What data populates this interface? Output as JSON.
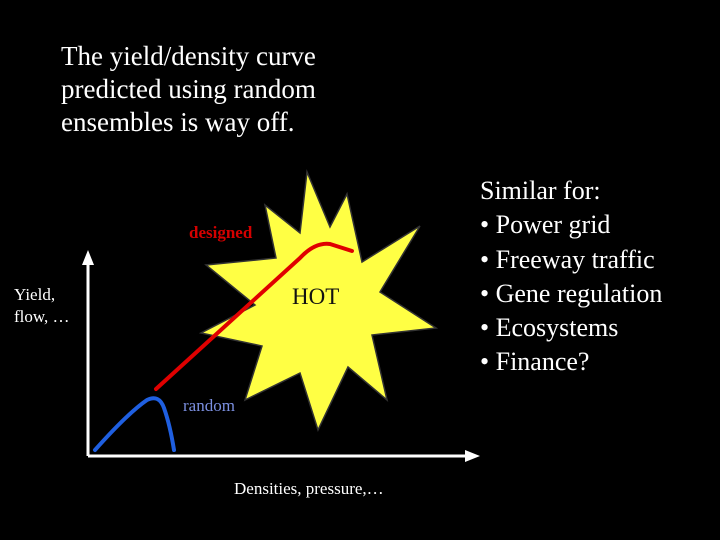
{
  "title_lines": [
    "The yield/density curve",
    "predicted using random",
    "ensembles is way off."
  ],
  "diagram": {
    "y_axis_label_lines": [
      "Yield,",
      "flow, …"
    ],
    "x_axis_label": "Densities, pressure,…",
    "designed_label": "designed",
    "hot_label": "HOT",
    "random_label": "random",
    "colors": {
      "background": "#000000",
      "axis": "#ffffff",
      "designed_curve": "#e00000",
      "random_curve": "#1f5fe0",
      "burst_fill": "#ffff44",
      "burst_outline": "#333333"
    }
  },
  "similar_list": {
    "heading": "Similar for:",
    "items": [
      "• Power grid",
      "• Freeway traffic",
      "• Gene regulation",
      "• Ecosystems",
      "• Finance?"
    ]
  }
}
